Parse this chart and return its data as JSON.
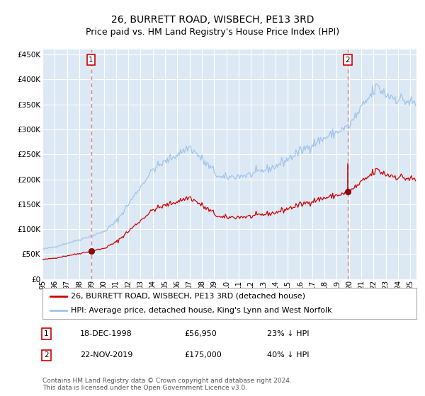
{
  "title": "26, BURRETT ROAD, WISBECH, PE13 3RD",
  "subtitle": "Price paid vs. HM Land Registry's House Price Index (HPI)",
  "background_color": "#ffffff",
  "plot_bg_color": "#dce9f5",
  "grid_color": "#ffffff",
  "hpi_color": "#a0c4e8",
  "price_color": "#cc0000",
  "dashed_color": "#e88080",
  "sale1_date_x": 1998.96,
  "sale1_price": 56950,
  "sale2_date_x": 2019.9,
  "sale2_price": 175000,
  "xmin": 1995.0,
  "xmax": 2025.5,
  "ymin": 0,
  "ymax": 460000,
  "yticks": [
    0,
    50000,
    100000,
    150000,
    200000,
    250000,
    300000,
    350000,
    400000,
    450000
  ],
  "xtick_years": [
    1995,
    1996,
    1997,
    1998,
    1999,
    2000,
    2001,
    2002,
    2003,
    2004,
    2005,
    2006,
    2007,
    2008,
    2009,
    2010,
    2011,
    2012,
    2013,
    2014,
    2015,
    2016,
    2017,
    2018,
    2019,
    2020,
    2021,
    2022,
    2023,
    2024,
    2025
  ],
  "legend_label_red": "26, BURRETT ROAD, WISBECH, PE13 3RD (detached house)",
  "legend_label_blue": "HPI: Average price, detached house, King's Lynn and West Norfolk",
  "annotation1_date": "18-DEC-1998",
  "annotation1_price": "£56,950",
  "annotation1_pct": "23% ↓ HPI",
  "annotation2_date": "22-NOV-2019",
  "annotation2_price": "£175,000",
  "annotation2_pct": "40% ↓ HPI",
  "footer": "Contains HM Land Registry data © Crown copyright and database right 2024.\nThis data is licensed under the Open Government Licence v3.0.",
  "title_fontsize": 10,
  "subtitle_fontsize": 9,
  "axis_fontsize": 7.5,
  "legend_fontsize": 8,
  "annotation_fontsize": 8,
  "footer_fontsize": 6.5
}
